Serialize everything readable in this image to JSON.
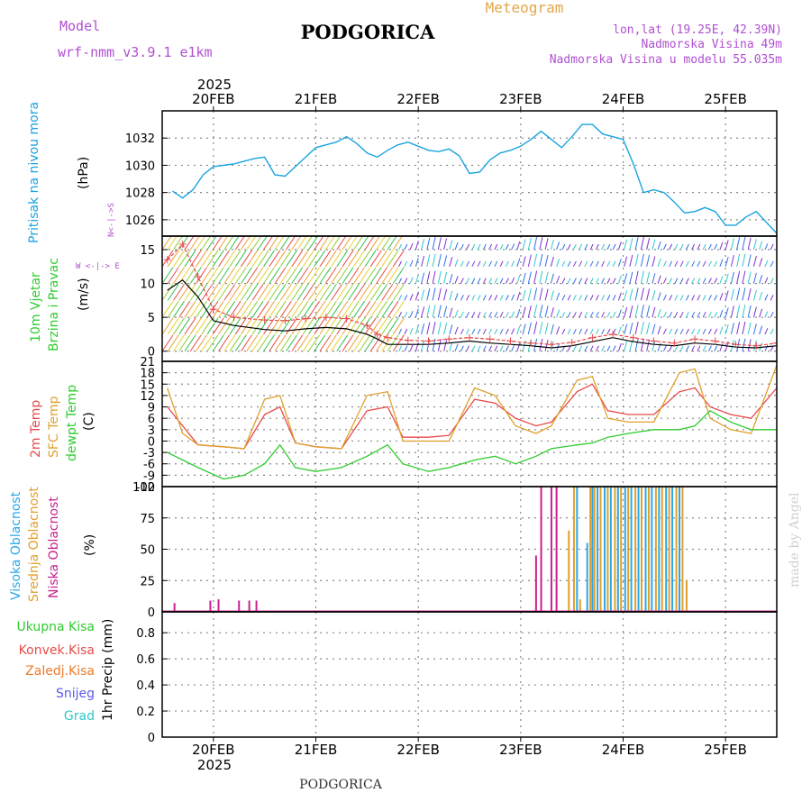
{
  "header": {
    "model_label": "Model",
    "model_name": "wrf-nmm_v3.9.1  e1km",
    "station": "PODGORICA",
    "product": "Meteogram",
    "lonlat": "lon,lat (19.25E, 42.39N)",
    "elevation": "Nadmorska Visina 49m",
    "model_elevation": "Nadmorska Visina u modelu 55.035m",
    "footer_station": "PODGORICA",
    "credit": "made by Angel",
    "year": "2025"
  },
  "colors": {
    "pressure": "#1aa3e0",
    "temp2m": "#e84a4a",
    "sfc": "#e0a02c",
    "dew": "#2ecc2e",
    "high": "#2aa8e8",
    "mid": "#e0a02c",
    "low": "#c8218f",
    "precip_total": "#2ecc2e",
    "precip_conv": "#e84a4a",
    "precip_frz": "#f07a2a",
    "precip_snow": "#5a5aee",
    "precip_hail": "#2ec8c8",
    "wind_label": "#2ecc2e",
    "compass": "#b050d0",
    "meta": "#b050d0",
    "gridline": "#888888"
  },
  "chart_data": [
    {
      "type": "line",
      "panel": "pressure",
      "ylabel": "Pritisak na nivou mora",
      "unit": "(hPa)",
      "yticks": [
        1026,
        1028,
        1030,
        1032
      ],
      "ylim": [
        1024.8,
        1034.0
      ],
      "x_days": [
        "19.6",
        "19.7",
        "19.8",
        "19.9",
        "20.0",
        "20.2",
        "20.4",
        "20.5",
        "20.6",
        "20.7",
        "20.9",
        "21.0",
        "21.2",
        "21.3",
        "21.4",
        "21.5",
        "21.6",
        "21.7",
        "21.8",
        "21.9",
        "22.0",
        "22.1",
        "22.2",
        "22.3",
        "22.4",
        "22.5",
        "22.6",
        "22.7",
        "22.8",
        "22.9",
        "23.0",
        "23.1",
        "23.2",
        "23.3",
        "23.4",
        "23.5",
        "23.6",
        "23.7",
        "23.8",
        "23.9",
        "24.0",
        "24.1",
        "24.2",
        "24.3",
        "24.4",
        "24.5",
        "24.6",
        "24.7",
        "24.8",
        "24.9",
        "25.0",
        "25.1",
        "25.2",
        "25.3",
        "25.5"
      ],
      "values": [
        1028.1,
        1027.6,
        1028.2,
        1029.3,
        1029.9,
        1030.1,
        1030.5,
        1030.6,
        1029.3,
        1029.2,
        1030.6,
        1031.3,
        1031.7,
        1032.1,
        1031.6,
        1030.9,
        1030.6,
        1031.1,
        1031.5,
        1031.7,
        1031.4,
        1031.1,
        1031.0,
        1031.2,
        1030.7,
        1029.4,
        1029.5,
        1030.4,
        1030.9,
        1031.1,
        1031.4,
        1031.9,
        1032.5,
        1031.9,
        1031.3,
        1032.1,
        1033.0,
        1033.0,
        1032.3,
        1032.1,
        1031.9,
        1030.1,
        1028.0,
        1028.2,
        1028.0,
        1027.3,
        1026.5,
        1026.6,
        1026.9,
        1026.6,
        1025.6,
        1025.6,
        1026.2,
        1026.6,
        1025.0
      ]
    },
    {
      "type": "line",
      "panel": "wind",
      "ylabel": "10m Vjetar Brzina i Pravac",
      "unit": "(m/s)",
      "yticks": [
        0,
        5,
        10,
        15
      ],
      "ylim": [
        -1.5,
        17
      ],
      "compass": [
        "N",
        "E",
        "W",
        "S"
      ],
      "x_days": [
        "19.55",
        "19.7",
        "19.85",
        "20.0",
        "20.2",
        "20.5",
        "20.7",
        "20.9",
        "21.1",
        "21.3",
        "21.5",
        "21.6",
        "21.7",
        "21.9",
        "22.1",
        "22.3",
        "22.5",
        "22.7",
        "22.9",
        "23.1",
        "23.3",
        "23.5",
        "23.7",
        "23.9",
        "24.1",
        "24.3",
        "24.5",
        "24.7",
        "24.9",
        "25.1",
        "25.3",
        "25.5"
      ],
      "values": [
        13.5,
        15.8,
        11.0,
        6.2,
        5.0,
        4.6,
        4.5,
        4.8,
        5.0,
        4.8,
        3.8,
        2.5,
        2.0,
        1.6,
        1.5,
        1.8,
        2.0,
        1.8,
        1.5,
        1.2,
        1.0,
        1.3,
        2.0,
        2.5,
        2.0,
        1.5,
        1.2,
        1.8,
        1.5,
        1.0,
        0.8,
        1.2
      ],
      "gust_values": [
        9.0,
        10.5,
        8.0,
        4.5,
        3.8,
        3.2,
        3.0,
        3.3,
        3.5,
        3.3,
        2.5,
        1.8,
        1.0,
        1.0,
        1.0,
        1.2,
        1.5,
        1.2,
        1.0,
        0.8,
        0.5,
        0.8,
        1.4,
        2.0,
        1.4,
        1.0,
        0.8,
        1.2,
        1.0,
        0.6,
        0.5,
        0.8
      ],
      "barb_rows": [
        0,
        2.5,
        5,
        7.5,
        10,
        12.5,
        15
      ]
    },
    {
      "type": "line",
      "panel": "temperature",
      "series": [
        {
          "name": "2m Temp",
          "color_key": "temp2m",
          "values": [
            9,
            4,
            -1,
            -1.5,
            -2,
            7,
            9,
            -0.5,
            -1.5,
            -2,
            8,
            9,
            1,
            1,
            1.5,
            11,
            10,
            6,
            4,
            5,
            13,
            15,
            8,
            7,
            7,
            13,
            14,
            9,
            7,
            6,
            14
          ]
        },
        {
          "name": "SFC Temp",
          "color_key": "sfc",
          "values": [
            14,
            2,
            -1,
            -1.5,
            -2,
            11,
            12,
            -0.5,
            -1.5,
            -2,
            12,
            13,
            0,
            0,
            0,
            14,
            12,
            4,
            2,
            4,
            16,
            17,
            6,
            5,
            5,
            18,
            19,
            6,
            3,
            2,
            20
          ]
        },
        {
          "name": "dewpt Temp",
          "color_key": "dew",
          "values": [
            -3,
            -5,
            -7,
            -10,
            -9,
            -6,
            -1,
            -7,
            -8,
            -7,
            -4,
            -1,
            -6,
            -8,
            -7,
            -5,
            -4,
            -6,
            -4,
            -2,
            -1,
            -0.5,
            1,
            2,
            3,
            3,
            4,
            8,
            5,
            3,
            3
          ]
        }
      ],
      "x_days": [
        "19.55",
        "19.7",
        "19.85",
        "20.1",
        "20.3",
        "20.5",
        "20.65",
        "20.8",
        "21.0",
        "21.25",
        "21.5",
        "21.7",
        "21.85",
        "22.1",
        "22.3",
        "22.55",
        "22.75",
        "22.95",
        "23.15",
        "23.3",
        "23.55",
        "23.7",
        "23.85",
        "24.05",
        "24.3",
        "24.55",
        "24.7",
        "24.85",
        "25.05",
        "25.25",
        "25.5"
      ],
      "yticks": [
        -12,
        -9,
        -6,
        -3,
        0,
        3,
        6,
        9,
        12,
        15,
        18,
        21
      ],
      "ylim": [
        -12,
        21
      ],
      "unit": "(C)"
    },
    {
      "type": "bar",
      "panel": "cloud",
      "unit": "(%)",
      "yticks": [
        0,
        25,
        50,
        75,
        100
      ],
      "ylim": [
        0,
        100
      ],
      "series": [
        {
          "name": "Visoka Oblacnost",
          "color_key": "high"
        },
        {
          "name": "Srednja Oblacnost",
          "color_key": "mid"
        },
        {
          "name": "Niska Oblacnost",
          "color_key": "low"
        }
      ],
      "low_bars": {
        "x_days": [
          "19.62",
          "19.97",
          "20.05",
          "20.25",
          "20.35",
          "20.42",
          "23.15",
          "23.2",
          "23.3",
          "23.35"
        ],
        "values": [
          7,
          9,
          10,
          9,
          9,
          9,
          45,
          100,
          100,
          100
        ]
      },
      "mid_bars": {
        "x_days": [
          "23.47",
          "23.52",
          "23.58",
          "23.68",
          "23.72",
          "23.78",
          "23.85",
          "23.92",
          "23.98",
          "24.05",
          "24.12",
          "24.18",
          "24.25",
          "24.32",
          "24.38",
          "24.45",
          "24.52",
          "24.58",
          "24.62"
        ],
        "values": [
          65,
          100,
          10,
          100,
          100,
          100,
          100,
          100,
          100,
          100,
          100,
          100,
          100,
          100,
          100,
          100,
          100,
          100,
          25
        ]
      },
      "high_bars": {
        "x_days": [
          "23.55",
          "23.65",
          "23.70",
          "23.75",
          "23.82",
          "23.88",
          "23.95",
          "24.02",
          "24.08",
          "24.15",
          "24.22",
          "24.28",
          "24.35",
          "24.42",
          "24.48",
          "24.55"
        ],
        "values": [
          100,
          55,
          100,
          100,
          100,
          100,
          100,
          100,
          100,
          100,
          100,
          100,
          100,
          100,
          100,
          100
        ]
      }
    },
    {
      "type": "bar",
      "panel": "precip",
      "ylabel": "1hr Precip",
      "unit": "(mm)",
      "yticks": [
        0,
        0.2,
        0.4,
        0.6,
        0.8
      ],
      "ylim": [
        0,
        0.96
      ],
      "legend": [
        "Ukupna Kisa",
        "Konvek.Kisa",
        "Zaledj.Kisa",
        "Snijeg",
        "Grad"
      ],
      "values": []
    }
  ],
  "x_axis": {
    "day_labels": [
      "20FEB",
      "21FEB",
      "22FEB",
      "23FEB",
      "24FEB",
      "25FEB"
    ],
    "day_values": [
      20,
      21,
      22,
      23,
      24,
      25
    ],
    "range": [
      19.5,
      25.5
    ]
  }
}
